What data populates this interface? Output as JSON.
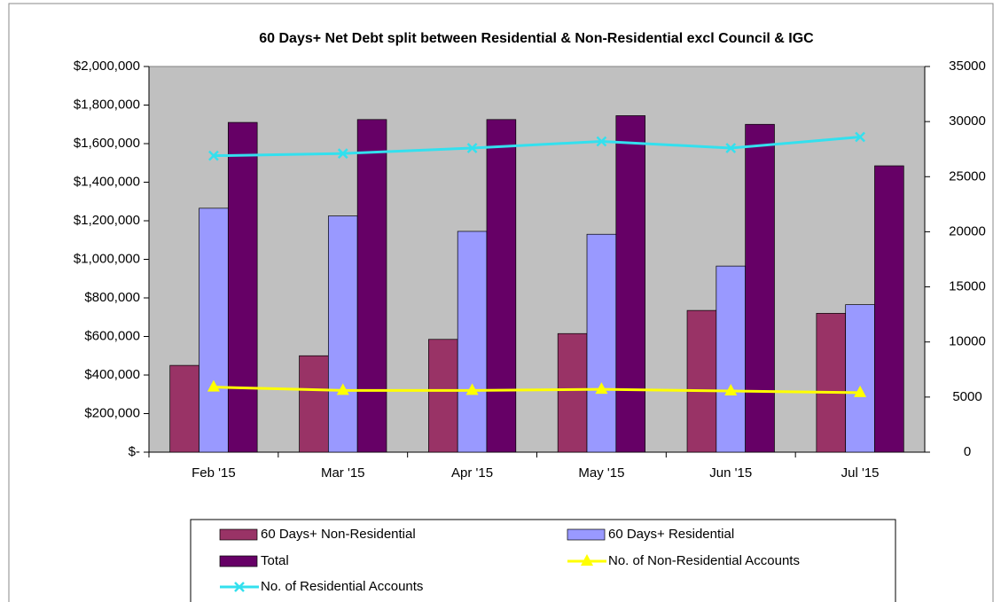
{
  "chart_data": {
    "type": "bar",
    "title": "60 Days+ Net Debt split between Residential & Non-Residential excl Council & IGC",
    "categories": [
      "Feb '15",
      "Mar '15",
      "Apr '15",
      "May '15",
      "Jun '15",
      "Jul '15"
    ],
    "series": [
      {
        "name": "60 Days+ Non-Residential",
        "type": "bar",
        "color": "#993366",
        "values": [
          450000,
          500000,
          585000,
          615000,
          735000,
          720000
        ]
      },
      {
        "name": "60 Days+ Residential",
        "type": "bar",
        "color": "#9999ff",
        "values": [
          1265000,
          1225000,
          1145000,
          1130000,
          965000,
          765000
        ]
      },
      {
        "name": "Total",
        "type": "bar",
        "color": "#660066",
        "values": [
          1710000,
          1725000,
          1725000,
          1745000,
          1700000,
          1485000
        ]
      },
      {
        "name": "No. of Non-Residential Accounts",
        "type": "line",
        "axis": "y2",
        "marker": "triangle",
        "color": "#ffff00",
        "values": [
          5900,
          5600,
          5600,
          5700,
          5550,
          5400
        ]
      },
      {
        "name": "No. of Residential Accounts",
        "type": "line",
        "axis": "y2",
        "marker": "x",
        "color": "#33e0ee",
        "values": [
          26900,
          27100,
          27600,
          28200,
          27600,
          28600
        ]
      }
    ],
    "ylim": [
      0,
      2000000
    ],
    "yticks": [
      {
        "value": 0,
        "label": "$-"
      },
      {
        "value": 200000,
        "label": "$200,000"
      },
      {
        "value": 400000,
        "label": "$400,000"
      },
      {
        "value": 600000,
        "label": "$600,000"
      },
      {
        "value": 800000,
        "label": "$800,000"
      },
      {
        "value": 1000000,
        "label": "$1,000,000"
      },
      {
        "value": 1200000,
        "label": "$1,200,000"
      },
      {
        "value": 1400000,
        "label": "$1,400,000"
      },
      {
        "value": 1600000,
        "label": "$1,600,000"
      },
      {
        "value": 1800000,
        "label": "$1,800,000"
      },
      {
        "value": 2000000,
        "label": "$2,000,000"
      }
    ],
    "y2lim": [
      0,
      35000
    ],
    "y2ticks": [
      0,
      5000,
      10000,
      15000,
      20000,
      25000,
      30000,
      35000
    ],
    "plot_background": "#c0c0c0",
    "grid": false,
    "legend": "bottom"
  }
}
